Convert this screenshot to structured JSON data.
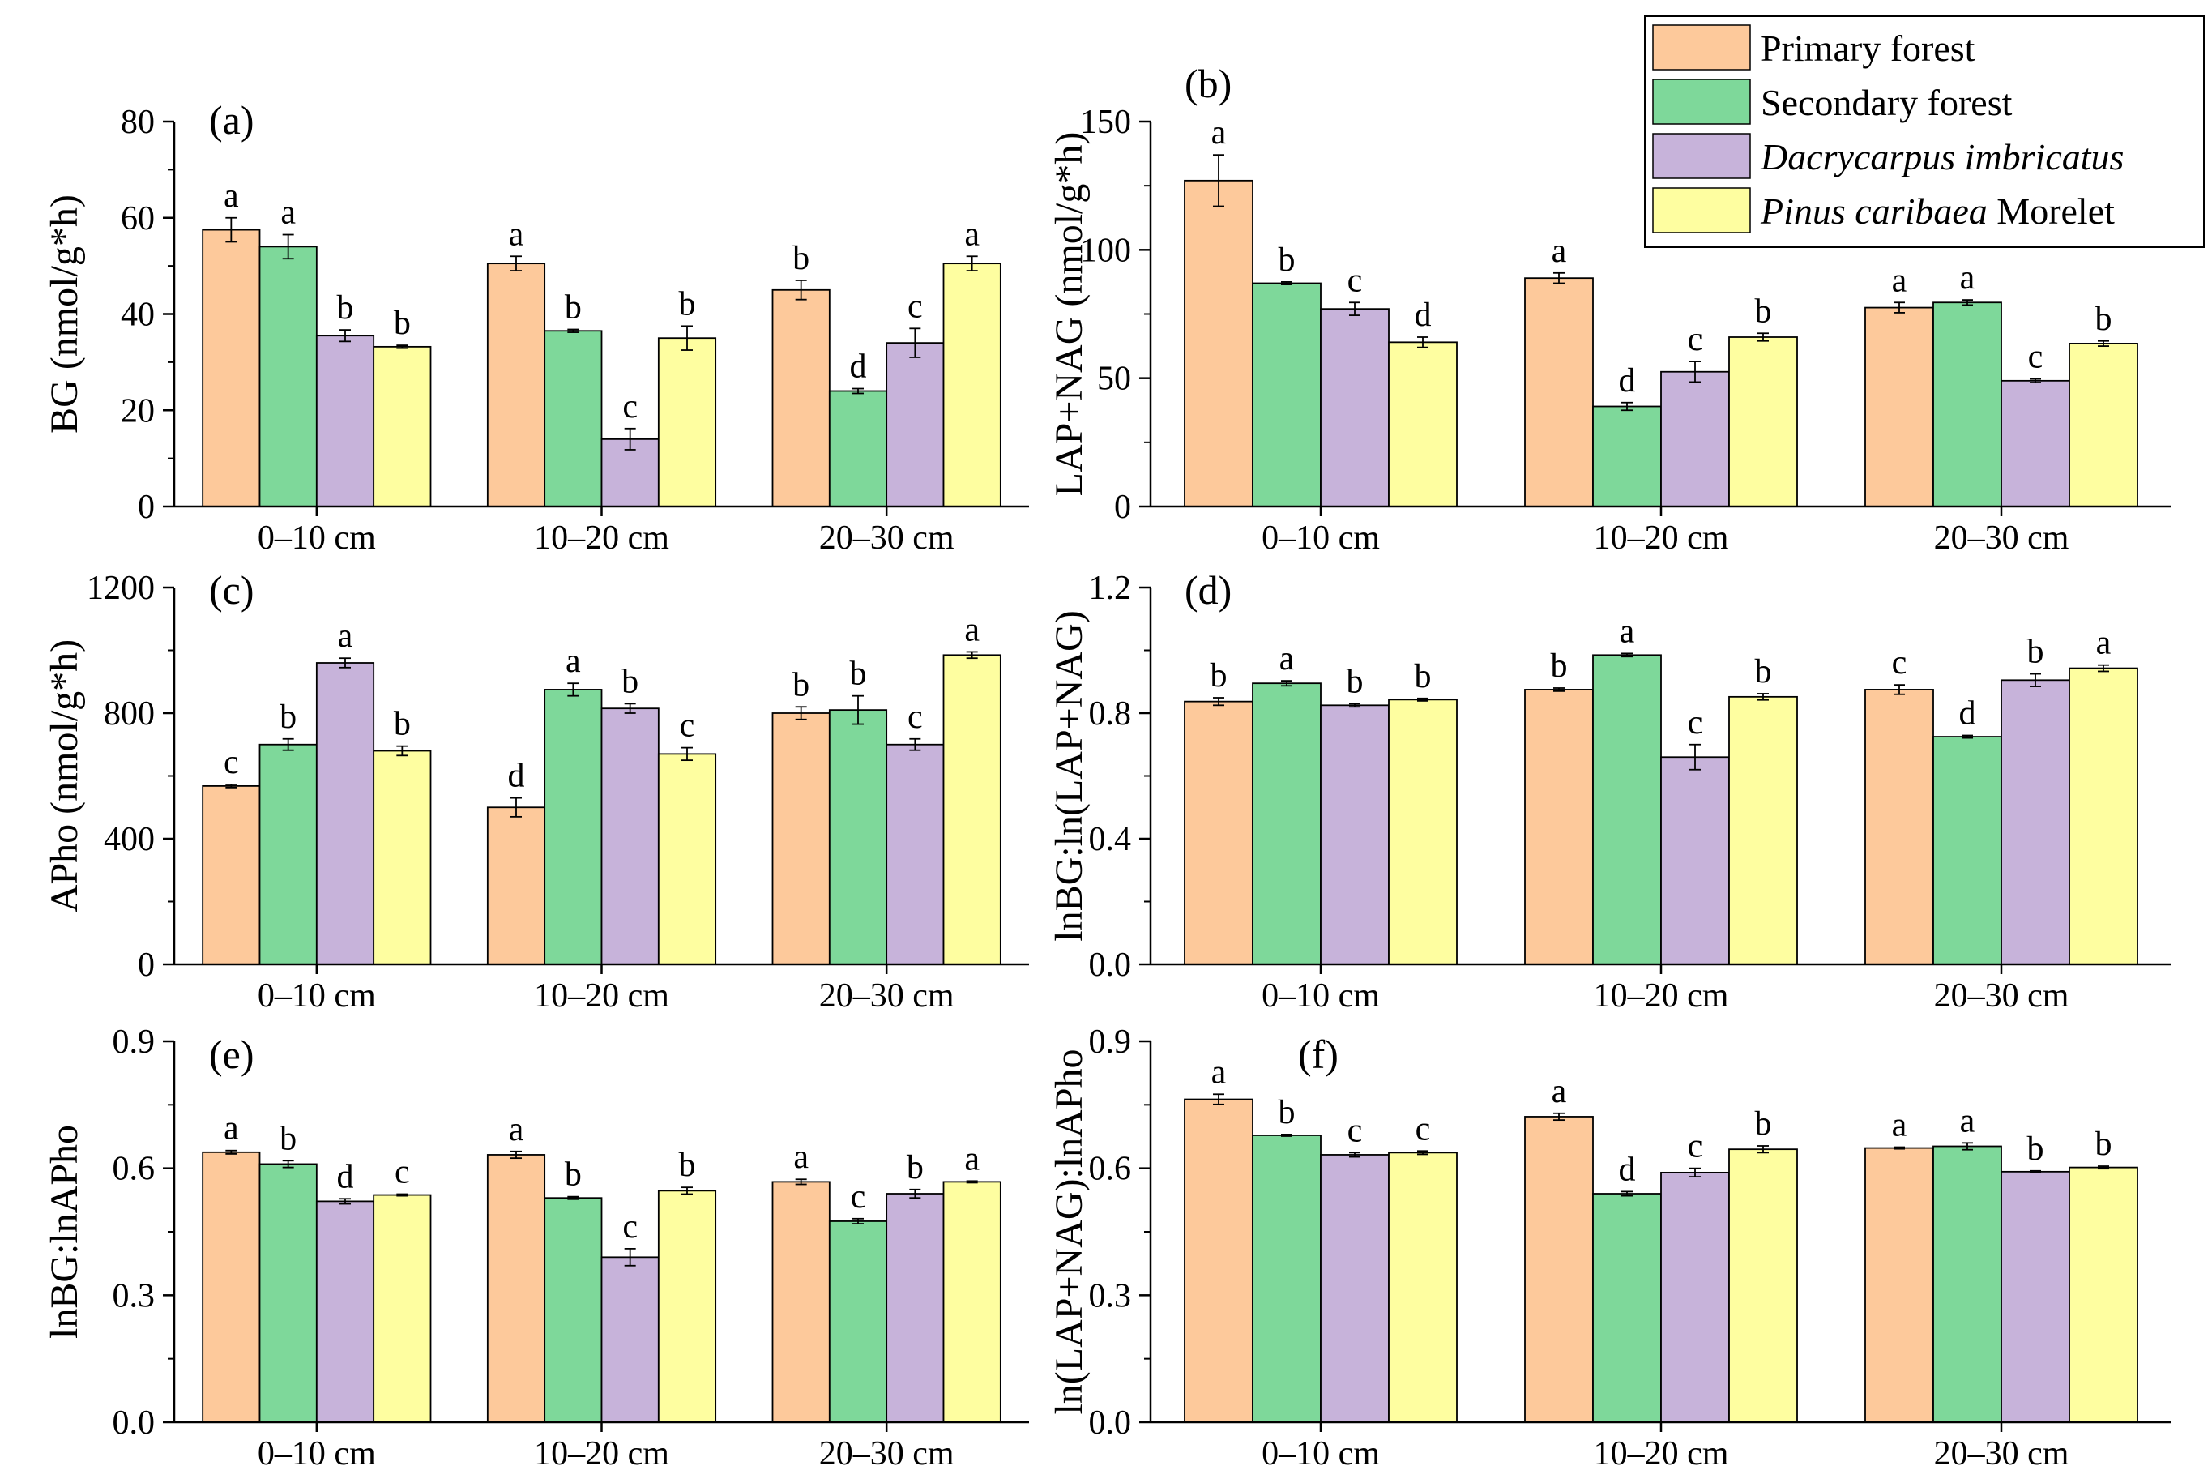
{
  "legend": {
    "entries": [
      {
        "key": "primary",
        "text": "Primary forest",
        "italic_part": "",
        "color": "#FDC99B"
      },
      {
        "key": "secondary",
        "text": "Secondary forest",
        "italic_part": "",
        "color": "#7ED89A"
      },
      {
        "key": "dacry",
        "text": "",
        "italic_part": "Dacrycarpus imbricatus",
        "color": "#C7B3DA"
      },
      {
        "key": "pinus",
        "text": " Morelet",
        "italic_part": "Pinus caribaea",
        "color": "#FEFEA0"
      }
    ]
  },
  "chart_data": [
    {
      "type": "bar",
      "panel_label": "(a)",
      "ylabel": "BG (nmol/g*h)",
      "ylim": [
        0,
        80
      ],
      "yticks": [
        "0",
        "20",
        "40",
        "60",
        "80"
      ],
      "categories": [
        "0–10 cm",
        "10–20 cm",
        "20–30 cm"
      ],
      "series": [
        {
          "name": "Primary forest",
          "values": [
            57.5,
            50.5,
            45
          ],
          "errors": [
            2.5,
            1.5,
            2
          ],
          "letters": [
            "a",
            "a",
            "b"
          ]
        },
        {
          "name": "Secondary forest",
          "values": [
            54,
            36.5,
            24
          ],
          "errors": [
            2.5,
            0.3,
            0.5
          ],
          "letters": [
            "a",
            "b",
            "d"
          ]
        },
        {
          "name": "Dacrycarpus imbricatus",
          "values": [
            35.5,
            14,
            34
          ],
          "errors": [
            1.2,
            2.2,
            3
          ],
          "letters": [
            "b",
            "c",
            "c"
          ]
        },
        {
          "name": "Pinus caribaea Morelet",
          "values": [
            33.2,
            35,
            50.5
          ],
          "errors": [
            0.3,
            2.5,
            1.5
          ],
          "letters": [
            "b",
            "b",
            "a"
          ]
        }
      ]
    },
    {
      "type": "bar",
      "panel_label": "(b)",
      "ylabel": "LAP+NAG (nmol/g*h)",
      "ylim": [
        0,
        150
      ],
      "yticks": [
        "0",
        "50",
        "100",
        "150"
      ],
      "categories": [
        "0–10 cm",
        "10–20 cm",
        "20–30 cm"
      ],
      "series": [
        {
          "name": "Primary forest",
          "values": [
            127,
            89,
            77.5
          ],
          "errors": [
            10,
            2,
            2
          ],
          "letters": [
            "a",
            "a",
            "a"
          ]
        },
        {
          "name": "Secondary forest",
          "values": [
            87,
            39,
            79.5
          ],
          "errors": [
            0.5,
            1.5,
            1
          ],
          "letters": [
            "b",
            "d",
            "a"
          ]
        },
        {
          "name": "Dacrycarpus imbricatus",
          "values": [
            77,
            52.5,
            49
          ],
          "errors": [
            2.5,
            4,
            0.7
          ],
          "letters": [
            "c",
            "c",
            "c"
          ]
        },
        {
          "name": "Pinus caribaea Morelet",
          "values": [
            64,
            66,
            63.5
          ],
          "errors": [
            2,
            1.5,
            1
          ],
          "letters": [
            "d",
            "b",
            "b"
          ]
        }
      ]
    },
    {
      "type": "bar",
      "panel_label": "(c)",
      "ylabel": "APho (nmol/g*h)",
      "ylim": [
        0,
        1200
      ],
      "yticks": [
        "0",
        "400",
        "800",
        "1200"
      ],
      "categories": [
        "0–10 cm",
        "10–20 cm",
        "20–30 cm"
      ],
      "series": [
        {
          "name": "Primary forest",
          "values": [
            568,
            500,
            800
          ],
          "errors": [
            5,
            30,
            20
          ],
          "letters": [
            "c",
            "d",
            "b"
          ]
        },
        {
          "name": "Secondary forest",
          "values": [
            700,
            875,
            810
          ],
          "errors": [
            18,
            20,
            45
          ],
          "letters": [
            "b",
            "a",
            "b"
          ]
        },
        {
          "name": "Dacrycarpus imbricatus",
          "values": [
            960,
            815,
            700
          ],
          "errors": [
            15,
            15,
            18
          ],
          "letters": [
            "a",
            "b",
            "c"
          ]
        },
        {
          "name": "Pinus caribaea Morelet",
          "values": [
            680,
            670,
            985
          ],
          "errors": [
            15,
            20,
            10
          ],
          "letters": [
            "b",
            "c",
            "a"
          ]
        }
      ]
    },
    {
      "type": "bar",
      "panel_label": "(d)",
      "ylabel": "lnBG:ln(LAP+NAG)",
      "ylim": [
        0,
        1.2
      ],
      "yticks": [
        "0.0",
        "0.4",
        "0.8",
        "1.2"
      ],
      "categories": [
        "0–10 cm",
        "10–20 cm",
        "20–30 cm"
      ],
      "series": [
        {
          "name": "Primary forest",
          "values": [
            0.837,
            0.875,
            0.875
          ],
          "errors": [
            0.012,
            0.005,
            0.015
          ],
          "letters": [
            "b",
            "b",
            "c"
          ]
        },
        {
          "name": "Secondary forest",
          "values": [
            0.895,
            0.985,
            0.725
          ],
          "errors": [
            0.008,
            0.005,
            0.004
          ],
          "letters": [
            "a",
            "a",
            "d"
          ]
        },
        {
          "name": "Dacrycarpus imbricatus",
          "values": [
            0.825,
            0.66,
            0.905
          ],
          "errors": [
            0.005,
            0.04,
            0.02
          ],
          "letters": [
            "b",
            "c",
            "b"
          ]
        },
        {
          "name": "Pinus caribaea Morelet",
          "values": [
            0.843,
            0.852,
            0.943
          ],
          "errors": [
            0.004,
            0.01,
            0.01
          ],
          "letters": [
            "b",
            "b",
            "a"
          ]
        }
      ]
    },
    {
      "type": "bar",
      "panel_label": "(e)",
      "ylabel": "lnBG:lnAPho",
      "ylim": [
        0,
        0.9
      ],
      "yticks": [
        "0.0",
        "0.3",
        "0.6",
        "0.9"
      ],
      "categories": [
        "0–10 cm",
        "10–20 cm",
        "20–30 cm"
      ],
      "series": [
        {
          "name": "Primary forest",
          "values": [
            0.638,
            0.632,
            0.568
          ],
          "errors": [
            0.004,
            0.008,
            0.006
          ],
          "letters": [
            "a",
            "a",
            "a"
          ]
        },
        {
          "name": "Secondary forest",
          "values": [
            0.61,
            0.53,
            0.475
          ],
          "errors": [
            0.008,
            0.003,
            0.006
          ],
          "letters": [
            "b",
            "b",
            "c"
          ]
        },
        {
          "name": "Dacrycarpus imbricatus",
          "values": [
            0.522,
            0.39,
            0.54
          ],
          "errors": [
            0.006,
            0.02,
            0.01
          ],
          "letters": [
            "d",
            "c",
            "b"
          ]
        },
        {
          "name": "Pinus caribaea Morelet",
          "values": [
            0.537,
            0.547,
            0.568
          ],
          "errors": [
            0.002,
            0.008,
            0.002
          ],
          "letters": [
            "c",
            "b",
            "a"
          ]
        }
      ]
    },
    {
      "type": "bar",
      "panel_label": "(f)",
      "ylabel": "ln(LAP+NAG):lnAPho",
      "ylim": [
        0,
        0.9
      ],
      "yticks": [
        "0.0",
        "0.3",
        "0.6",
        "0.9"
      ],
      "categories": [
        "0–10 cm",
        "10–20 cm",
        "20–30 cm"
      ],
      "series": [
        {
          "name": "Primary forest",
          "values": [
            0.763,
            0.722,
            0.648
          ],
          "errors": [
            0.012,
            0.008,
            0.002
          ],
          "letters": [
            "a",
            "a",
            "a"
          ]
        },
        {
          "name": "Secondary forest",
          "values": [
            0.678,
            0.54,
            0.652
          ],
          "errors": [
            0.002,
            0.005,
            0.008
          ],
          "letters": [
            "b",
            "d",
            "a"
          ]
        },
        {
          "name": "Dacrycarpus imbricatus",
          "values": [
            0.632,
            0.59,
            0.592
          ],
          "errors": [
            0.005,
            0.01,
            0.002
          ],
          "letters": [
            "c",
            "c",
            "b"
          ]
        },
        {
          "name": "Pinus caribaea Morelet",
          "values": [
            0.637,
            0.645,
            0.602
          ],
          "errors": [
            0.004,
            0.008,
            0.003
          ],
          "letters": [
            "c",
            "b",
            "b"
          ]
        }
      ]
    }
  ]
}
